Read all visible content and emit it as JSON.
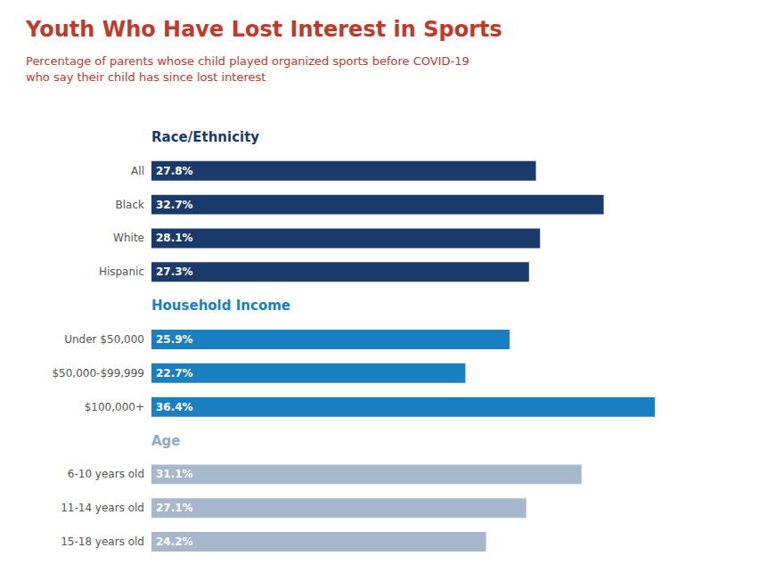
{
  "chart_data": {
    "type": "bar",
    "orientation": "horizontal",
    "title": "Youth Who Have Lost Interest in Sports",
    "subtitle": "Percentage of parents whose child played organized sports before COVID-19\nwho say their child has since lost interest",
    "title_color": "#c0392b",
    "subtitle_color": "#c0392b",
    "categories": [
      "All",
      "Black",
      "White",
      "Hispanic",
      "Under $50,000",
      "$50,000-$99,999",
      "$100,000+",
      "6-10 years old",
      "11-14 years old",
      "15-18 years old"
    ],
    "values": [
      27.8,
      32.7,
      28.1,
      27.3,
      25.9,
      22.7,
      36.4,
      31.1,
      27.1,
      24.2
    ],
    "value_labels": [
      "27.8%",
      "32.7%",
      "28.1%",
      "27.3%",
      "25.9%",
      "22.7%",
      "36.4%",
      "31.1%",
      "27.1%",
      "24.2%"
    ],
    "colors": [
      "#1a3a6b",
      "#1a3a6b",
      "#1a3a6b",
      "#1a3a6b",
      "#1a7fc1",
      "#1a7fc1",
      "#1a7fc1",
      "#a8b8cc",
      "#a8b8cc",
      "#a8b8cc"
    ],
    "annotations": [
      {
        "text": "Race/Ethnicity",
        "color": "#1a3a6b",
        "above": "All"
      },
      {
        "text": "Household Income",
        "color": "#1a7fc1",
        "above": "Under $50,000"
      },
      {
        "text": "Age",
        "color": "#8fa8c8",
        "above": "6-10 years old"
      }
    ],
    "xlim": [
      0,
      42
    ],
    "data_labels": true,
    "tick_labels": "y",
    "grid": false
  }
}
